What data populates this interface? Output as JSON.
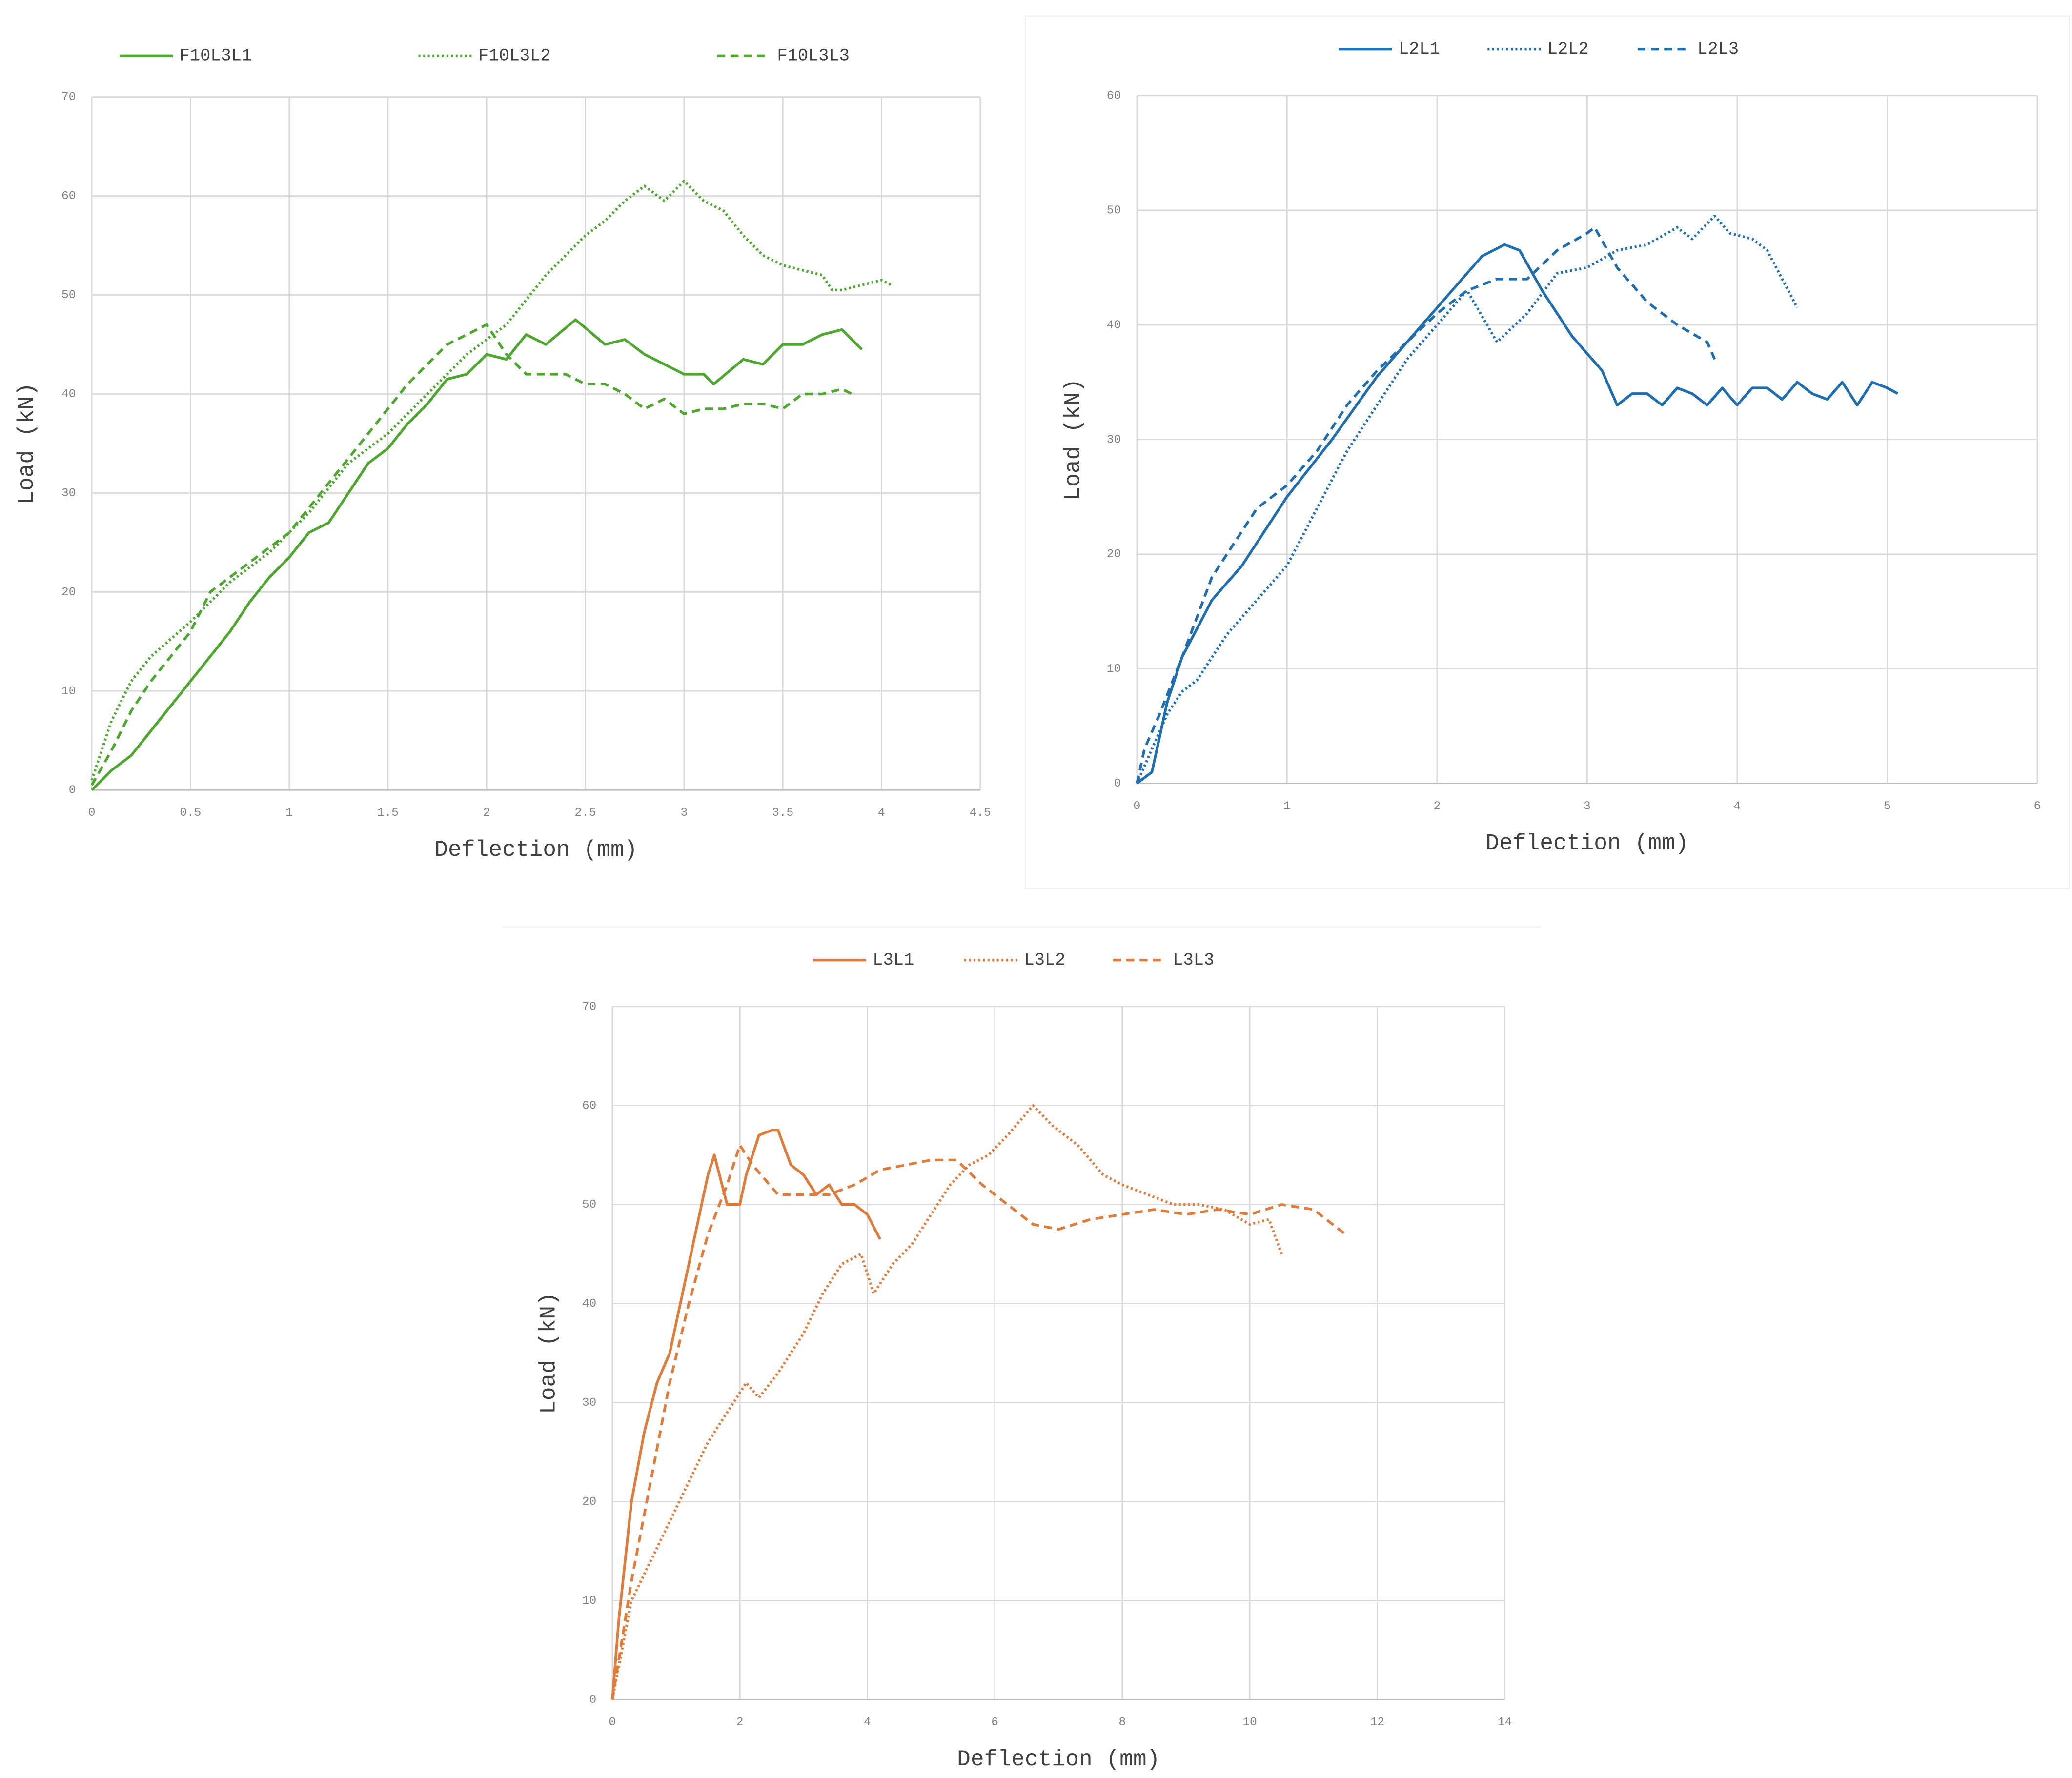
{
  "chart_data": [
    {
      "type": "line",
      "xlabel": "Deflection (mm)",
      "ylabel": "Load (kN)",
      "xlim": [
        0,
        4.5
      ],
      "xticks": [
        0,
        0.5,
        1,
        1.5,
        2,
        2.5,
        3,
        3.5,
        4,
        4.5
      ],
      "ylim": [
        0,
        70
      ],
      "yticks": [
        0,
        10,
        20,
        30,
        40,
        50,
        60,
        70
      ],
      "grid": true,
      "legend": "top",
      "series": [
        {
          "name": "F10L3L1",
          "color": "#4ea72e",
          "dash": "solid",
          "x": [
            0,
            0.1,
            0.2,
            0.3,
            0.4,
            0.5,
            0.6,
            0.7,
            0.8,
            0.9,
            1.0,
            1.1,
            1.2,
            1.3,
            1.4,
            1.5,
            1.6,
            1.7,
            1.8,
            1.9,
            2.0,
            2.1,
            2.2,
            2.3,
            2.45,
            2.6,
            2.7,
            2.8,
            2.9,
            3.0,
            3.1,
            3.15,
            3.3,
            3.4,
            3.5,
            3.6,
            3.7,
            3.8,
            3.9
          ],
          "values": [
            0,
            2,
            3.5,
            6,
            8.5,
            11,
            13.5,
            16,
            19,
            21.5,
            23.5,
            26,
            27,
            30,
            33,
            34.5,
            37,
            39,
            41.5,
            42,
            44,
            43.5,
            46,
            45,
            47.5,
            45,
            45.5,
            44,
            43,
            42,
            42,
            41,
            43.5,
            43,
            45,
            45,
            46,
            46.5,
            44.5
          ]
        },
        {
          "name": "F10L3L2",
          "color": "#4ea72e",
          "dash": "dotted",
          "x": [
            0,
            0.1,
            0.2,
            0.3,
            0.5,
            0.7,
            0.9,
            1.1,
            1.3,
            1.5,
            1.7,
            1.9,
            2.1,
            2.3,
            2.5,
            2.6,
            2.7,
            2.8,
            2.9,
            3.0,
            3.1,
            3.2,
            3.3,
            3.4,
            3.5,
            3.6,
            3.7,
            3.75,
            3.8,
            3.9,
            4.0,
            4.05
          ],
          "values": [
            1,
            7,
            11,
            13.5,
            17,
            21,
            24,
            28,
            33,
            36,
            40,
            44,
            47,
            52,
            56,
            57.5,
            59.5,
            61,
            59.5,
            61.5,
            59.5,
            58.5,
            56,
            54,
            53,
            52.5,
            52,
            50.5,
            50.5,
            51,
            51.5,
            51
          ]
        },
        {
          "name": "F10L3L3",
          "color": "#4ea72e",
          "dash": "dashed",
          "x": [
            0,
            0.1,
            0.2,
            0.3,
            0.5,
            0.6,
            0.8,
            1.0,
            1.2,
            1.4,
            1.6,
            1.8,
            1.9,
            2.0,
            2.1,
            2.2,
            2.3,
            2.4,
            2.5,
            2.6,
            2.7,
            2.8,
            2.9,
            3.0,
            3.1,
            3.2,
            3.3,
            3.4,
            3.5,
            3.6,
            3.7,
            3.8,
            3.85
          ],
          "values": [
            0.5,
            4,
            8,
            11,
            16,
            20,
            23,
            26,
            31,
            36,
            41,
            45,
            46,
            47,
            44,
            42,
            42,
            42,
            41,
            41,
            40,
            38.5,
            39.5,
            38,
            38.5,
            38.5,
            39,
            39,
            38.5,
            40,
            40,
            40.5,
            40
          ]
        }
      ]
    },
    {
      "type": "line",
      "xlabel": "Deflection (mm)",
      "ylabel": "Load (kN)",
      "xlim": [
        0,
        6
      ],
      "xticks": [
        0,
        1,
        2,
        3,
        4,
        5,
        6
      ],
      "ylim": [
        0,
        60
      ],
      "yticks": [
        0,
        10,
        20,
        30,
        40,
        50,
        60
      ],
      "grid": true,
      "legend": "top",
      "series": [
        {
          "name": "L2L1",
          "color": "#1f6fb0",
          "dash": "solid",
          "x": [
            0,
            0.1,
            0.15,
            0.2,
            0.3,
            0.5,
            0.7,
            1.0,
            1.3,
            1.6,
            1.9,
            2.1,
            2.3,
            2.45,
            2.55,
            2.7,
            2.9,
            3.1,
            3.2,
            3.3,
            3.4,
            3.5,
            3.6,
            3.7,
            3.8,
            3.9,
            4.0,
            4.1,
            4.2,
            4.3,
            4.4,
            4.5,
            4.6,
            4.7,
            4.8,
            4.9,
            5.0,
            5.07
          ],
          "values": [
            0,
            1,
            4,
            7,
            11,
            16,
            19,
            25,
            30,
            35.5,
            40,
            43,
            46,
            47,
            46.5,
            43,
            39,
            36,
            33,
            34,
            34,
            33,
            34.5,
            34,
            33,
            34.5,
            33,
            34.5,
            34.5,
            33.5,
            35,
            34,
            33.5,
            35,
            33,
            35,
            34.5,
            34
          ]
        },
        {
          "name": "L2L2",
          "color": "#1f6fb0",
          "dash": "dotted",
          "x": [
            0,
            0.1,
            0.2,
            0.3,
            0.4,
            0.6,
            0.8,
            1.0,
            1.2,
            1.4,
            1.6,
            1.8,
            2.0,
            2.2,
            2.4,
            2.6,
            2.8,
            3.0,
            3.2,
            3.4,
            3.6,
            3.7,
            3.85,
            3.95,
            4.1,
            4.2,
            4.3,
            4.4
          ],
          "values": [
            0,
            3,
            6,
            8,
            9,
            13,
            16,
            19,
            24,
            29,
            33,
            37,
            40,
            43,
            38.5,
            41,
            44.5,
            45,
            46.5,
            47,
            48.5,
            47.5,
            49.5,
            48,
            47.5,
            46.5,
            44,
            41.5
          ]
        },
        {
          "name": "L2L3",
          "color": "#1f6fb0",
          "dash": "dashed",
          "x": [
            0,
            0.05,
            0.15,
            0.3,
            0.5,
            0.7,
            0.8,
            1.0,
            1.2,
            1.4,
            1.6,
            1.8,
            2.0,
            2.2,
            2.4,
            2.6,
            2.8,
            3.0,
            3.05,
            3.2,
            3.4,
            3.6,
            3.8,
            3.85
          ],
          "values": [
            0,
            3,
            6,
            11,
            18,
            22,
            24,
            26,
            29,
            33,
            36,
            38.5,
            41,
            43,
            44,
            44,
            46.5,
            48,
            48.5,
            45,
            42,
            40,
            38.5,
            37
          ]
        }
      ]
    },
    {
      "type": "line",
      "xlabel": "Deflection (mm)",
      "ylabel": "Load (kN)",
      "xlim": [
        0,
        14
      ],
      "xticks": [
        0,
        2,
        4,
        6,
        8,
        10,
        12,
        14
      ],
      "ylim": [
        0,
        70
      ],
      "yticks": [
        0,
        10,
        20,
        30,
        40,
        50,
        60,
        70
      ],
      "grid": true,
      "legend": "top",
      "series": [
        {
          "name": "L3L1",
          "color": "#e07b39",
          "dash": "solid",
          "x": [
            0,
            0.1,
            0.3,
            0.5,
            0.7,
            0.9,
            1.1,
            1.3,
            1.5,
            1.6,
            1.8,
            2.0,
            2.1,
            2.3,
            2.5,
            2.6,
            2.8,
            3.0,
            3.2,
            3.4,
            3.6,
            3.8,
            4.0,
            4.2
          ],
          "values": [
            0,
            8,
            20,
            27,
            32,
            35,
            41,
            47,
            53,
            55,
            50,
            50,
            53,
            57,
            57.5,
            57.5,
            54,
            53,
            51,
            52,
            50,
            50,
            49,
            46.5
          ]
        },
        {
          "name": "L3L2",
          "color": "#e07b39",
          "dash": "dotted",
          "x": [
            0,
            0.3,
            0.6,
            0.9,
            1.2,
            1.5,
            1.8,
            2.1,
            2.3,
            2.6,
            3.0,
            3.3,
            3.6,
            3.9,
            4.1,
            4.4,
            4.7,
            5.0,
            5.3,
            5.6,
            5.9,
            6.2,
            6.6,
            6.9,
            7.3,
            7.7,
            8.0,
            8.4,
            8.8,
            9.2,
            9.6,
            10.0,
            10.3,
            10.5
          ],
          "values": [
            0,
            10,
            14,
            18,
            22,
            26,
            29,
            32,
            30.5,
            33,
            37,
            41,
            44,
            45,
            41,
            44,
            46,
            49,
            52,
            54,
            55,
            57,
            60,
            58,
            56,
            53,
            52,
            51,
            50,
            50,
            49.5,
            48,
            48.5,
            45
          ]
        },
        {
          "name": "L3L3",
          "color": "#e07b39",
          "dash": "dashed",
          "x": [
            0,
            0.3,
            0.6,
            0.9,
            1.2,
            1.5,
            1.8,
            2.0,
            2.2,
            2.6,
            3.0,
            3.4,
            3.8,
            4.2,
            4.6,
            5.0,
            5.4,
            5.8,
            6.2,
            6.6,
            7.0,
            7.5,
            8.0,
            8.5,
            9.0,
            9.5,
            10.0,
            10.5,
            11.0,
            11.5
          ],
          "values": [
            0,
            12,
            22,
            32,
            40,
            47,
            52,
            56,
            54,
            51,
            51,
            51,
            52,
            53.5,
            54,
            54.5,
            54.5,
            52,
            50,
            48,
            47.5,
            48.5,
            49,
            49.5,
            49,
            49.5,
            49,
            50,
            49.5,
            47
          ]
        }
      ]
    }
  ]
}
